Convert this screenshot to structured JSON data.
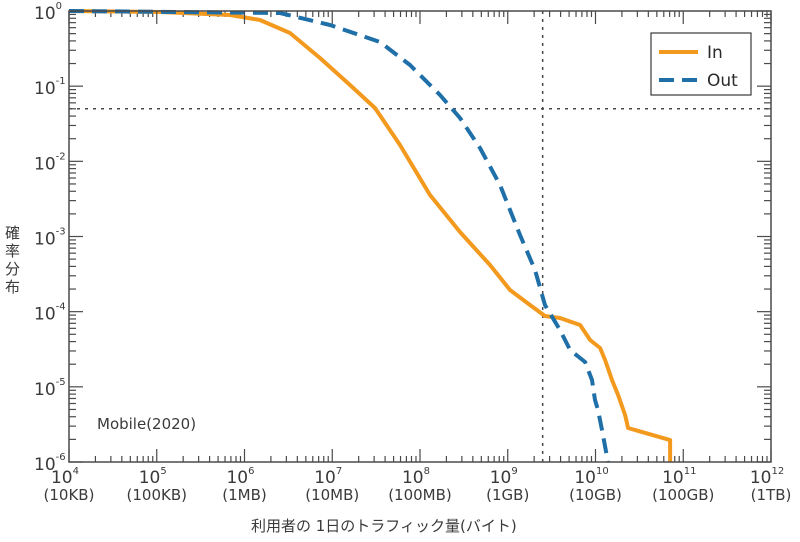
{
  "chart_data": {
    "type": "line",
    "title": "",
    "xlabel": "利用者の 1日のトラフィック量(バイト)",
    "ylabel": "確率分布",
    "xscale": "log",
    "yscale": "log",
    "xlim_log10": [
      4,
      12
    ],
    "ylim_log10": [
      -6,
      0
    ],
    "grid": false,
    "legend_position": "top-right",
    "annotation": "Mobile(2020)",
    "x_ticks": [
      {
        "base": "10",
        "exp": "4",
        "unit": "(10KB)",
        "log10": 4
      },
      {
        "base": "10",
        "exp": "5",
        "unit": "(100KB)",
        "log10": 5
      },
      {
        "base": "10",
        "exp": "6",
        "unit": "(1MB)",
        "log10": 6
      },
      {
        "base": "10",
        "exp": "7",
        "unit": "(10MB)",
        "log10": 7
      },
      {
        "base": "10",
        "exp": "8",
        "unit": "(100MB)",
        "log10": 8
      },
      {
        "base": "10",
        "exp": "9",
        "unit": "(1GB)",
        "log10": 9
      },
      {
        "base": "10",
        "exp": "10",
        "unit": "(10GB)",
        "log10": 10
      },
      {
        "base": "10",
        "exp": "11",
        "unit": "(100GB)",
        "log10": 11
      },
      {
        "base": "10",
        "exp": "12",
        "unit": "(1TB)",
        "log10": 12
      }
    ],
    "y_ticks": [
      {
        "base": "10",
        "exp": "0",
        "log10": 0
      },
      {
        "base": "10",
        "exp": "-1",
        "log10": -1
      },
      {
        "base": "10",
        "exp": "-2",
        "log10": -2
      },
      {
        "base": "10",
        "exp": "-3",
        "log10": -3
      },
      {
        "base": "10",
        "exp": "-4",
        "log10": -4
      },
      {
        "base": "10",
        "exp": "-5",
        "log10": -5
      },
      {
        "base": "10",
        "exp": "-6",
        "log10": -6
      }
    ],
    "reference_lines": {
      "horizontal_y": 0.05,
      "vertical_x": 2500000000
    },
    "series": [
      {
        "name": "In",
        "color": "#f39a1e",
        "style": "solid",
        "log10_x": [
          4.0,
          5.037,
          5.835,
          6.177,
          6.519,
          6.86,
          7.202,
          7.487,
          7.772,
          8.114,
          8.456,
          8.798,
          9.026,
          9.254,
          9.425,
          9.596,
          9.824,
          9.938,
          10.052,
          10.109,
          10.188,
          10.257,
          10.337,
          10.371,
          10.85,
          10.85
        ],
        "log10_y": [
          0,
          -0.013,
          -0.053,
          -0.12,
          -0.293,
          -0.625,
          -0.985,
          -1.29,
          -1.783,
          -2.448,
          -2.94,
          -3.379,
          -3.712,
          -3.911,
          -4.057,
          -4.084,
          -4.177,
          -4.377,
          -4.483,
          -4.643,
          -4.909,
          -5.109,
          -5.375,
          -5.548,
          -5.708,
          -6.0
        ]
      },
      {
        "name": "Out",
        "color": "#1f6fa8",
        "style": "dashed",
        "log10_x": [
          4.0,
          6.405,
          6.974,
          7.544,
          7.886,
          8.228,
          8.456,
          8.684,
          8.912,
          9.14,
          9.311,
          9.425,
          9.596,
          9.71,
          9.881,
          9.96,
          9.994,
          10.028,
          10.074,
          10.142
        ],
        "log10_y": [
          0,
          -0.027,
          -0.186,
          -0.412,
          -0.718,
          -1.117,
          -1.423,
          -1.822,
          -2.315,
          -2.98,
          -3.446,
          -3.912,
          -4.244,
          -4.51,
          -4.67,
          -4.909,
          -5.175,
          -5.308,
          -5.574,
          -6.0
        ]
      }
    ]
  }
}
